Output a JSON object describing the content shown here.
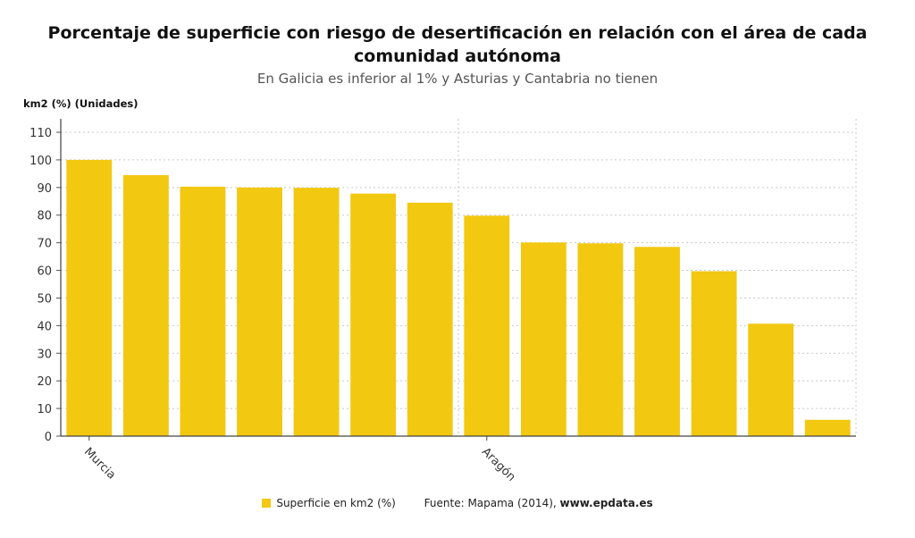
{
  "chart_data": {
    "type": "bar",
    "title": "Porcentaje de superficie con riesgo de desertificación en relación con el área de cada comunidad autónoma",
    "subtitle": "En Galicia es inferior al 1% y Asturias y Cantabria no tienen",
    "ylabel": "km2 (%) (Unidades)",
    "ylim": [
      0,
      110
    ],
    "yticks": [
      0,
      10,
      20,
      30,
      40,
      50,
      60,
      70,
      80,
      90,
      100,
      110
    ],
    "grid": true,
    "x_tick_labels": [
      {
        "index": 0,
        "label": "Murcia"
      },
      {
        "index": 7,
        "label": "Aragón"
      }
    ],
    "series": [
      {
        "name": "Superficie en km2 (%)",
        "color": "#f2c811",
        "values": [
          100,
          94.5,
          90.3,
          90,
          89.9,
          87.8,
          84.5,
          79.8,
          70.1,
          69.8,
          68.5,
          59.7,
          40.7,
          5.9
        ]
      }
    ],
    "legend_position": "bottom",
    "source_prefix": "Fuente: Mapama (2014), ",
    "source_site": "www.epdata.es"
  }
}
